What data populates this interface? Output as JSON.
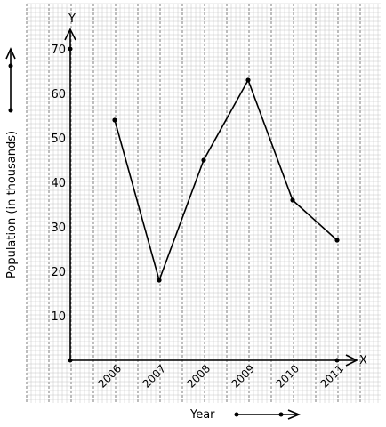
{
  "chart_data": {
    "type": "line",
    "xlabel": "Year",
    "ylabel": "Population (in thousands)",
    "x_axis_letter": "X",
    "y_axis_letter": "Y",
    "categories": [
      "2006",
      "2007",
      "2008",
      "2009",
      "2010",
      "2011"
    ],
    "values": [
      54,
      18,
      45,
      63,
      36,
      27
    ],
    "yticks": [
      10,
      20,
      30,
      40,
      50,
      60,
      70
    ],
    "ylim": [
      0,
      70
    ],
    "grid": true,
    "colors": {
      "line": "#000000",
      "grid_minor": "#b8b8b8",
      "grid_major": "#6e6e6e",
      "background": "#ffffff"
    }
  }
}
